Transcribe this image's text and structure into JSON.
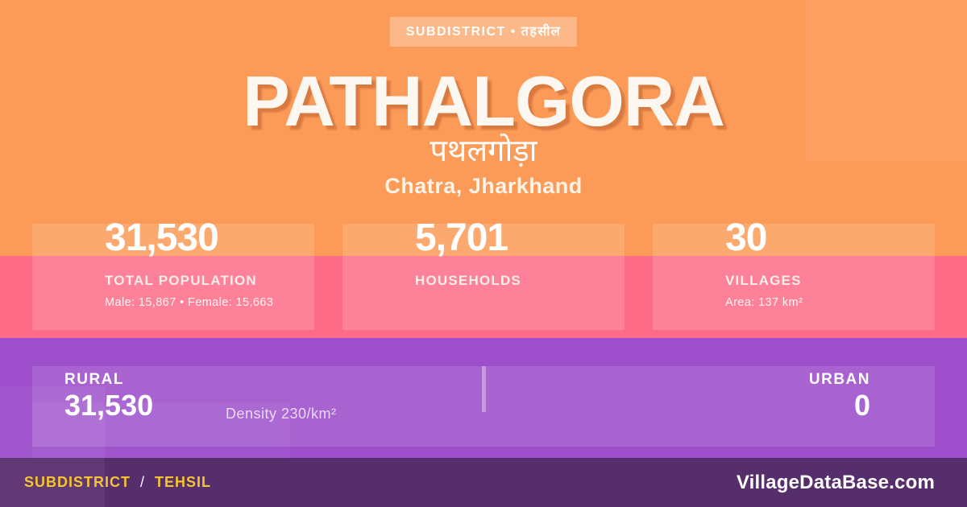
{
  "colors": {
    "orange_bg": "#FC9A58",
    "pink_band": "#FD6B86",
    "purple_band": "#9C4ECB",
    "footer_bg": "#572E6C",
    "accent_yellow": "#F5C431",
    "text_white": "#FFFFFF"
  },
  "badge": {
    "label": "SUBDISTRICT • तहसील"
  },
  "header": {
    "title": "PATHALGORA",
    "title_local": "पथलगोड़ा",
    "location": "Chatra, Jharkhand"
  },
  "stats": [
    {
      "value": "31,530",
      "label": "TOTAL POPULATION",
      "detail": "Male: 15,867 • Female: 15,663"
    },
    {
      "value": "5,701",
      "label": "HOUSEHOLDS",
      "detail": ""
    },
    {
      "value": "30",
      "label": "VILLAGES",
      "detail": "Area: 137 km²"
    }
  ],
  "breakdown": {
    "rural_label": "RURAL",
    "rural_value": "31,530",
    "density": "Density 230/km²",
    "urban_label": "URBAN",
    "urban_value": "0"
  },
  "footer": {
    "left_primary": "SUBDISTRICT",
    "left_separator": "/",
    "left_secondary": "TEHSIL",
    "site": "VillageDataBase.com"
  }
}
